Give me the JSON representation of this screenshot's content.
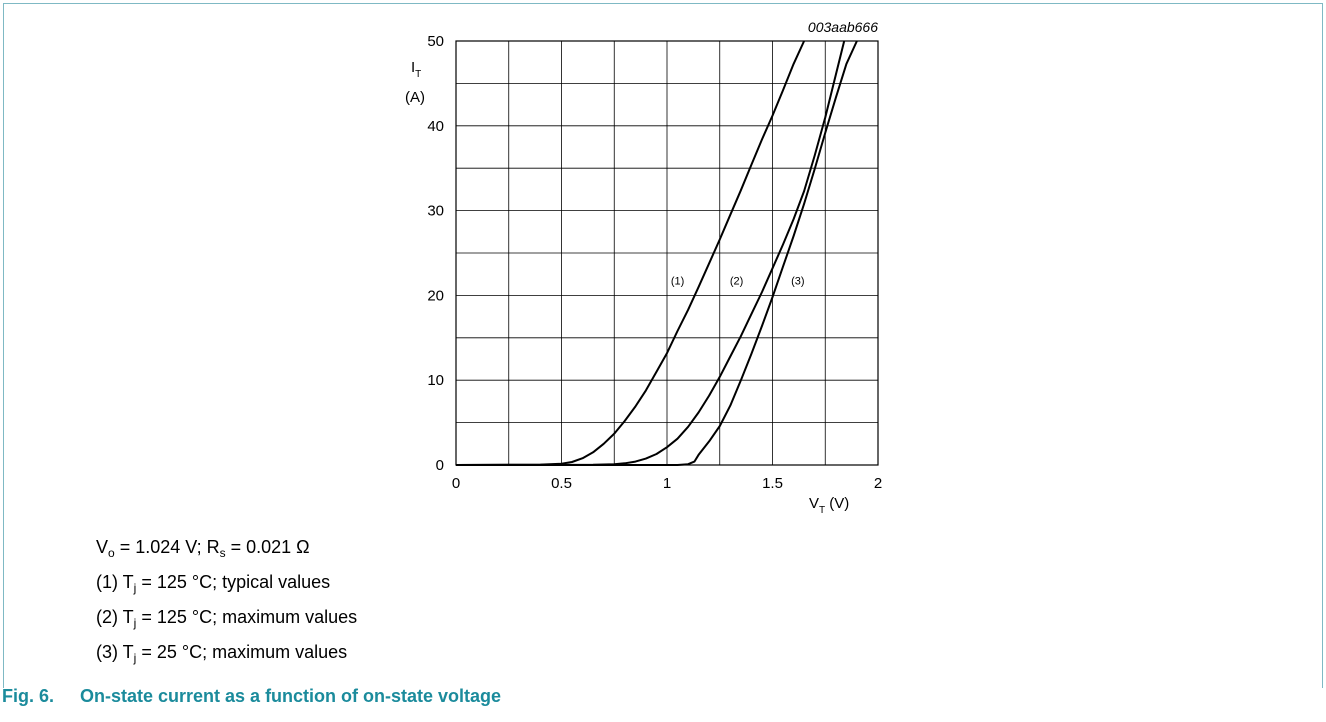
{
  "figure": {
    "code": "003aab666",
    "caption_number": "Fig. 6.",
    "caption_title": "On-state current as a function of on-state voltage",
    "notes": {
      "vo_label": "V",
      "vo_sub": "o",
      "vo_text": " = 1.024 V; R",
      "rs_sub": "s",
      "rs_text": " = 0.021 Ω",
      "curve1_prefix": "(1) T",
      "curve1_sub": "j",
      "curve1_text": " = 125 °C; typical values",
      "curve2_prefix": "(2) T",
      "curve2_sub": "j",
      "curve2_text": " = 125 °C; maximum values",
      "curve3_prefix": "(3) T",
      "curve3_sub": "j",
      "curve3_text": " = 25 °C; maximum values"
    },
    "caption_color": "#1b8b9c",
    "frame_color": "#7fb9c4"
  },
  "chart_data": {
    "type": "line",
    "ylabel_main": "I",
    "ylabel_sub": "T",
    "ylabel_unit": "(A)",
    "xlabel_main": "V",
    "xlabel_sub": "T",
    "xlabel_unit": " (V)",
    "xlim": [
      0,
      2
    ],
    "ylim": [
      0,
      50
    ],
    "xticks": [
      0,
      0.5,
      1,
      1.5,
      2
    ],
    "xtick_labels": [
      "0",
      "0.5",
      "1",
      "1.5",
      "2"
    ],
    "yticks": [
      0,
      10,
      20,
      30,
      40,
      50
    ],
    "ytick_labels": [
      "0",
      "10",
      "20",
      "30",
      "40",
      "50"
    ],
    "grid": true,
    "line_color": "#000000",
    "series": [
      {
        "name": "(1)",
        "label_at": [
          1.05,
          21.3
        ],
        "x": [
          0,
          0.4,
          0.5,
          0.55,
          0.6,
          0.65,
          0.7,
          0.75,
          0.8,
          0.85,
          0.9,
          0.95,
          1.0,
          1.05,
          1.1,
          1.15,
          1.2,
          1.25,
          1.3,
          1.35,
          1.4,
          1.45,
          1.5,
          1.55,
          1.6,
          1.65
        ],
        "y": [
          0,
          0.05,
          0.15,
          0.35,
          0.8,
          1.5,
          2.5,
          3.7,
          5.2,
          6.9,
          8.8,
          11.0,
          13.2,
          15.8,
          18.3,
          21.0,
          23.8,
          26.6,
          29.5,
          32.4,
          35.4,
          38.4,
          41.2,
          44.2,
          47.3,
          50
        ]
      },
      {
        "name": "(2)",
        "label_at": [
          1.33,
          21.3
        ],
        "x": [
          0,
          0.65,
          0.75,
          0.8,
          0.85,
          0.9,
          0.95,
          1.0,
          1.05,
          1.1,
          1.15,
          1.2,
          1.25,
          1.3,
          1.35,
          1.4,
          1.45,
          1.5,
          1.55,
          1.6,
          1.65,
          1.7,
          1.75,
          1.8,
          1.84
        ],
        "y": [
          0,
          0.02,
          0.1,
          0.2,
          0.4,
          0.75,
          1.3,
          2.1,
          3.1,
          4.5,
          6.2,
          8.2,
          10.4,
          12.8,
          15.2,
          17.8,
          20.4,
          23.2,
          26.0,
          29.0,
          32.3,
          36.5,
          41.0,
          46.0,
          50
        ]
      },
      {
        "name": "(3)",
        "label_at": [
          1.62,
          21.3
        ],
        "x": [
          0,
          1.05,
          1.1,
          1.13,
          1.15,
          1.2,
          1.25,
          1.3,
          1.35,
          1.4,
          1.45,
          1.5,
          1.55,
          1.6,
          1.65,
          1.7,
          1.75,
          1.8,
          1.85,
          1.9
        ],
        "y": [
          0,
          0,
          0.1,
          0.4,
          1.2,
          2.8,
          4.6,
          7.0,
          10.0,
          13.1,
          16.4,
          19.8,
          23.4,
          27.0,
          30.8,
          34.9,
          39.2,
          43.3,
          47.3,
          50
        ]
      }
    ]
  }
}
